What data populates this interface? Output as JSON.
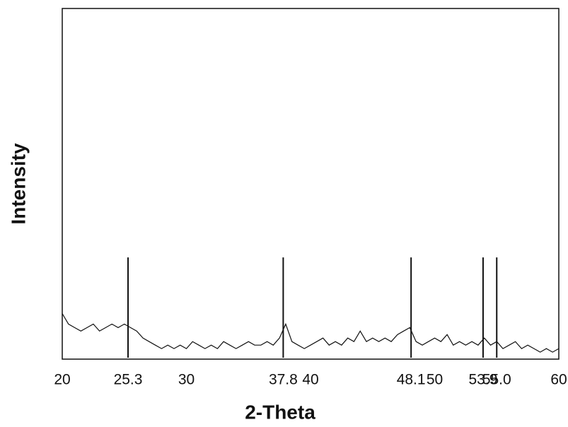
{
  "chart_data": {
    "type": "line",
    "x_label": "2-Theta",
    "y_label": "Intensity",
    "x": [
      20,
      20.5,
      21,
      21.5,
      22,
      22.5,
      23,
      23.5,
      24,
      24.5,
      25,
      25.5,
      26,
      26.5,
      27,
      27.5,
      28,
      28.5,
      29,
      29.5,
      30,
      30.5,
      31,
      31.5,
      32,
      32.5,
      33,
      33.5,
      34,
      34.5,
      35,
      35.5,
      36,
      36.5,
      37,
      37.5,
      38,
      38.5,
      39,
      39.5,
      40,
      40.5,
      41,
      41.5,
      42,
      42.5,
      43,
      43.5,
      44,
      44.5,
      45,
      45.5,
      46,
      46.5,
      47,
      47.5,
      48,
      48.5,
      49,
      49.5,
      50,
      50.5,
      51,
      51.5,
      52,
      52.5,
      53,
      53.5,
      54,
      54.5,
      55,
      55.5,
      56,
      56.5,
      57,
      57.5,
      58,
      58.5,
      59,
      59.5,
      60
    ],
    "values": [
      13,
      10,
      9,
      8,
      9,
      10,
      8,
      9,
      10,
      9,
      10,
      9,
      8,
      6,
      5,
      4,
      3,
      4,
      3,
      4,
      3,
      5,
      4,
      3,
      4,
      3,
      5,
      4,
      3,
      4,
      5,
      4,
      4,
      5,
      4,
      6,
      10,
      5,
      4,
      3,
      4,
      5,
      6,
      4,
      5,
      4,
      6,
      5,
      8,
      5,
      6,
      5,
      6,
      5,
      7,
      8,
      9,
      5,
      4,
      5,
      6,
      5,
      7,
      4,
      5,
      4,
      5,
      4,
      6,
      4,
      5,
      3,
      4,
      5,
      3,
      4,
      3,
      2,
      3,
      2,
      3
    ],
    "color": "#111111",
    "peaks": {
      "x": [
        25.3,
        37.8,
        48.1,
        53.9,
        55.0
      ],
      "values": [
        29,
        29,
        29,
        29,
        29
      ]
    },
    "xlim": [
      20,
      60
    ],
    "ylim": [
      0,
      100
    ],
    "xticks": [
      20,
      {
        "value": 25.3,
        "label": "25.3"
      },
      30,
      {
        "value": 37.8,
        "label": "37.8"
      },
      40,
      {
        "value": 48.1,
        "label": "48.1"
      },
      50,
      {
        "value": 53.9,
        "label": "53.9"
      },
      {
        "value": 55,
        "label": "55.0"
      },
      60
    ]
  }
}
